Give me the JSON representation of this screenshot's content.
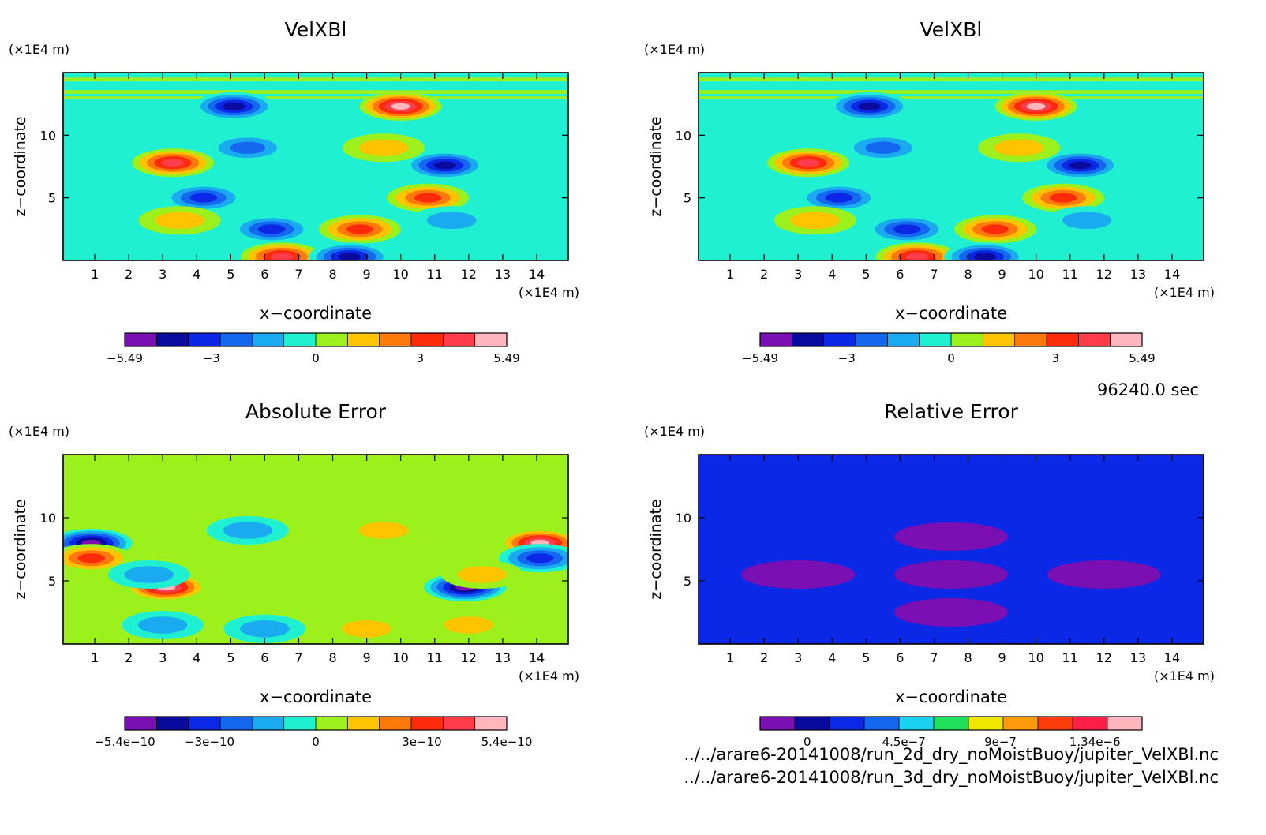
{
  "time_label": "96240.0 sec",
  "file_paths": [
    "../../arare6-20141008/run_2d_dry_noMoistBuoy/jupiter_VelXBl.nc",
    "../../arare6-20141008/run_3d_dry_noMoistBuoy/jupiter_VelXBl.nc"
  ],
  "chart_data": [
    {
      "type": "heatmap",
      "title": "VelXBl",
      "xlabel": "x−coordinate",
      "ylabel": "z−coordinate",
      "x_unit": "(×1E4 m)",
      "y_unit": "(×1E4 m)",
      "x_ticks": [
        "1",
        "2",
        "3",
        "4",
        "5",
        "6",
        "7",
        "8",
        "9",
        "10",
        "11",
        "12",
        "13",
        "14"
      ],
      "y_ticks": [
        "5",
        "10"
      ],
      "xlim": [
        0.07,
        14.93
      ],
      "ylim": [
        0,
        15
      ],
      "colorbar_labels": [
        "−5.49",
        "−3",
        "0",
        "3",
        "5.49"
      ],
      "colorbar_label_values": [
        -5.49,
        -3,
        0,
        3,
        5.49
      ],
      "colorbar_range": [
        -5.49,
        5.49
      ],
      "colorbar_colors": [
        "#7a0fb3",
        "#0a0a9f",
        "#0a28e6",
        "#1468f0",
        "#19aaf0",
        "#1ff0d2",
        "#9cf01c",
        "#ffc400",
        "#ff7a0a",
        "#ff2a0a",
        "#ff3c4a",
        "#ffb6bc"
      ],
      "background_color": "#1ff0d2",
      "features": [
        {
          "x": 5.1,
          "z": 12.3,
          "value": -4.5
        },
        {
          "x": 10.0,
          "z": 12.3,
          "value": 4.8
        },
        {
          "x": 3.3,
          "z": 7.8,
          "value": 3.8
        },
        {
          "x": 11.3,
          "z": 7.6,
          "value": -4.2
        },
        {
          "x": 4.2,
          "z": 5.0,
          "value": -3.5
        },
        {
          "x": 10.8,
          "z": 5.0,
          "value": 3.2
        },
        {
          "x": 6.2,
          "z": 2.5,
          "value": -3.3
        },
        {
          "x": 8.8,
          "z": 2.5,
          "value": 3.0
        },
        {
          "x": 6.5,
          "z": 0.3,
          "value": 4.0
        },
        {
          "x": 8.5,
          "z": 0.3,
          "value": -4.0
        },
        {
          "x": 3.5,
          "z": 3.2,
          "value": 1.6
        },
        {
          "x": 11.5,
          "z": 3.2,
          "value": -1.6
        },
        {
          "x": 5.5,
          "z": 9.0,
          "value": -2.0
        },
        {
          "x": 9.5,
          "z": 9.0,
          "value": 1.8
        }
      ]
    },
    {
      "type": "heatmap",
      "title": "VelXBl",
      "xlabel": "x−coordinate",
      "ylabel": "z−coordinate",
      "x_unit": "(×1E4 m)",
      "y_unit": "(×1E4 m)",
      "x_ticks": [
        "1",
        "2",
        "3",
        "4",
        "5",
        "6",
        "7",
        "8",
        "9",
        "10",
        "11",
        "12",
        "13",
        "14"
      ],
      "y_ticks": [
        "5",
        "10"
      ],
      "xlim": [
        0.07,
        14.93
      ],
      "ylim": [
        0,
        15
      ],
      "colorbar_labels": [
        "−5.49",
        "−3",
        "0",
        "3",
        "5.49"
      ],
      "colorbar_label_values": [
        -5.49,
        -3,
        0,
        3,
        5.49
      ],
      "colorbar_range": [
        -5.49,
        5.49
      ],
      "colorbar_colors": [
        "#7a0fb3",
        "#0a0a9f",
        "#0a28e6",
        "#1468f0",
        "#19aaf0",
        "#1ff0d2",
        "#9cf01c",
        "#ffc400",
        "#ff7a0a",
        "#ff2a0a",
        "#ff3c4a",
        "#ffb6bc"
      ],
      "background_color": "#1ff0d2",
      "features": [
        {
          "x": 5.1,
          "z": 12.3,
          "value": -4.5
        },
        {
          "x": 10.0,
          "z": 12.3,
          "value": 4.8
        },
        {
          "x": 3.3,
          "z": 7.8,
          "value": 3.8
        },
        {
          "x": 11.3,
          "z": 7.6,
          "value": -4.2
        },
        {
          "x": 4.2,
          "z": 5.0,
          "value": -3.5
        },
        {
          "x": 10.8,
          "z": 5.0,
          "value": 3.2
        },
        {
          "x": 6.2,
          "z": 2.5,
          "value": -3.3
        },
        {
          "x": 8.8,
          "z": 2.5,
          "value": 3.0
        },
        {
          "x": 6.5,
          "z": 0.3,
          "value": 4.0
        },
        {
          "x": 8.5,
          "z": 0.3,
          "value": -4.0
        },
        {
          "x": 3.5,
          "z": 3.2,
          "value": 1.6
        },
        {
          "x": 11.5,
          "z": 3.2,
          "value": -1.6
        },
        {
          "x": 5.5,
          "z": 9.0,
          "value": -2.0
        },
        {
          "x": 9.5,
          "z": 9.0,
          "value": 1.8
        }
      ]
    },
    {
      "type": "heatmap",
      "title": "Absolute Error",
      "xlabel": "x−coordinate",
      "ylabel": "z−coordinate",
      "x_unit": "(×1E4 m)",
      "y_unit": "(×1E4 m)",
      "x_ticks": [
        "1",
        "2",
        "3",
        "4",
        "5",
        "6",
        "7",
        "8",
        "9",
        "10",
        "11",
        "12",
        "13",
        "14"
      ],
      "y_ticks": [
        "5",
        "10"
      ],
      "xlim": [
        0.07,
        14.93
      ],
      "ylim": [
        0,
        15
      ],
      "colorbar_labels": [
        "−5.4e−10",
        "−3e−10",
        "0",
        "3e−10",
        "5.4e−10"
      ],
      "colorbar_label_values": [
        -5.4e-10,
        -3e-10,
        0,
        3e-10,
        5.4e-10
      ],
      "colorbar_range": [
        -5.4e-10,
        5.4e-10
      ],
      "colorbar_colors": [
        "#7a0fb3",
        "#0a0a9f",
        "#0a28e6",
        "#1468f0",
        "#19aaf0",
        "#1ff0d2",
        "#9cf01c",
        "#ffc400",
        "#ff7a0a",
        "#ff2a0a",
        "#ff3c4a",
        "#ffb6bc"
      ],
      "background_color": "#9cf01c",
      "features": [
        {
          "x": 0.9,
          "z": 8.0,
          "value": -4.6e-10
        },
        {
          "x": 0.9,
          "z": 6.8,
          "value": 3.6e-10
        },
        {
          "x": 14.1,
          "z": 8.0,
          "value": 4.6e-10
        },
        {
          "x": 14.1,
          "z": 6.8,
          "value": -3.6e-10
        },
        {
          "x": 3.1,
          "z": 4.5,
          "value": 4.8e-10
        },
        {
          "x": 11.9,
          "z": 4.5,
          "value": -4.8e-10
        },
        {
          "x": 2.6,
          "z": 5.5,
          "value": -1.8e-10
        },
        {
          "x": 12.4,
          "z": 5.5,
          "value": 1.8e-10
        },
        {
          "x": 3.0,
          "z": 1.5,
          "value": -1.6e-10
        },
        {
          "x": 12.0,
          "z": 1.5,
          "value": 1.6e-10
        },
        {
          "x": 6.0,
          "z": 1.2,
          "value": -1.5e-10
        },
        {
          "x": 9.0,
          "z": 1.2,
          "value": 1.5e-10
        },
        {
          "x": 5.5,
          "z": 9.0,
          "value": -1e-10
        },
        {
          "x": 9.5,
          "z": 9.0,
          "value": 1e-10
        }
      ]
    },
    {
      "type": "heatmap",
      "title": "Relative Error",
      "xlabel": "x−coordinate",
      "ylabel": "z−coordinate",
      "x_unit": "(×1E4 m)",
      "y_unit": "(×1E4 m)",
      "x_ticks": [
        "1",
        "2",
        "3",
        "4",
        "5",
        "6",
        "7",
        "8",
        "9",
        "10",
        "11",
        "12",
        "13",
        "14"
      ],
      "y_ticks": [
        "5",
        "10"
      ],
      "xlim": [
        0.07,
        14.93
      ],
      "ylim": [
        0,
        15
      ],
      "colorbar_labels": [
        "0",
        "4.5e−7",
        "9e−7",
        "1.34e−6"
      ],
      "colorbar_label_values": [
        0,
        4.5e-07,
        9e-07,
        1.34e-06
      ],
      "colorbar_range": [
        -2.2e-07,
        1.56e-06
      ],
      "colorbar_colors": [
        "#7a0fb3",
        "#0a0a9f",
        "#0a28e6",
        "#1468f0",
        "#19d2f0",
        "#1ee05a",
        "#f0e600",
        "#ff9a0a",
        "#ff3c0a",
        "#ff1e46",
        "#ffb6bc"
      ],
      "background_color": "#0a28e6",
      "features": [
        {
          "x": 7.5,
          "z": 5.5,
          "value": -1.4e-07
        },
        {
          "x": 3.0,
          "z": 5.5,
          "value": -1.2e-07
        },
        {
          "x": 12.0,
          "z": 5.5,
          "value": -1.2e-07
        },
        {
          "x": 7.5,
          "z": 8.5,
          "value": -1.1e-07
        },
        {
          "x": 7.5,
          "z": 2.5,
          "value": -1e-07
        }
      ]
    }
  ]
}
